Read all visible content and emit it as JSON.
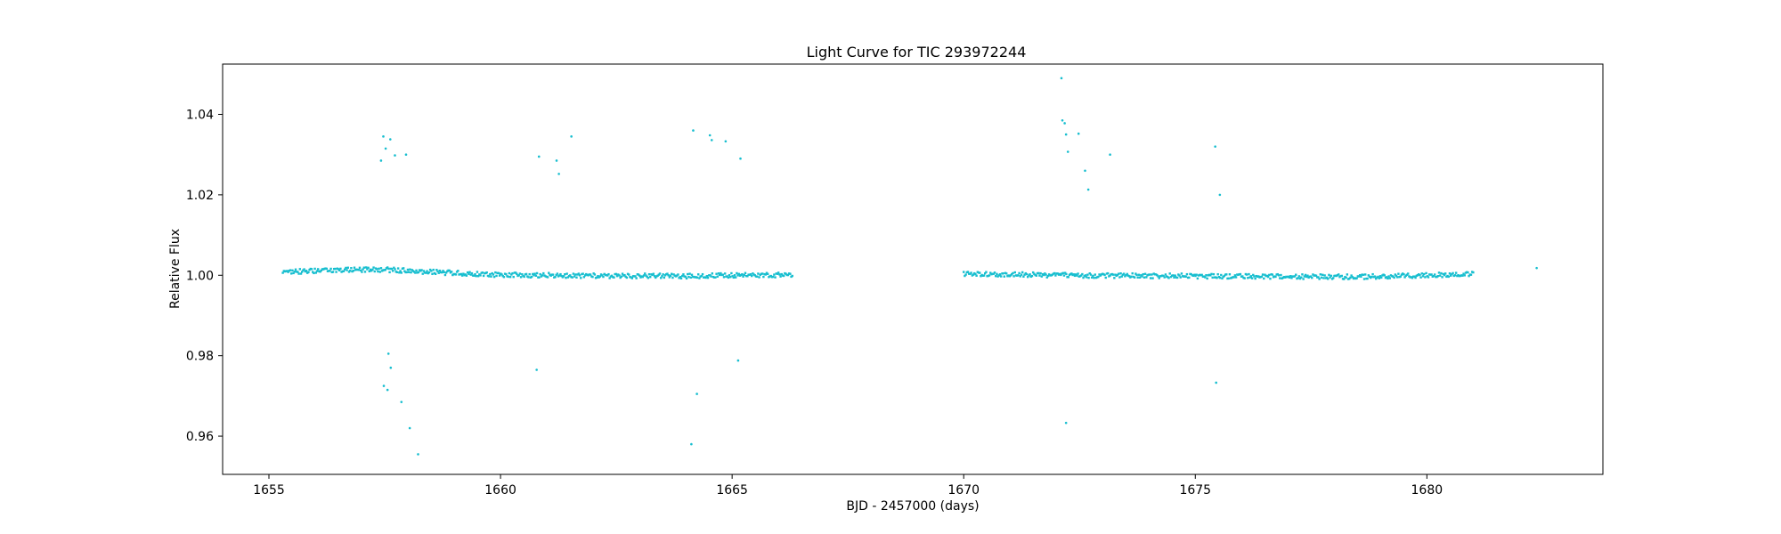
{
  "chart_data": {
    "type": "scatter",
    "title": "Light Curve for TIC 293972244",
    "xlabel": "BJD - 2457000 (days)",
    "ylabel": "Relative Flux",
    "xlim": [
      1654.0,
      1683.8
    ],
    "ylim": [
      0.9505,
      1.0525
    ],
    "xticks": [
      1655,
      1660,
      1665,
      1670,
      1675,
      1680
    ],
    "xtick_labels": [
      "1655",
      "1660",
      "1665",
      "1670",
      "1675",
      "1680"
    ],
    "yticks": [
      0.96,
      0.98,
      1.0,
      1.02,
      1.04
    ],
    "ytick_labels": [
      "0.96",
      "0.98",
      "1.00",
      "1.02",
      "1.04"
    ],
    "grid": false,
    "legend": "none",
    "colors": {
      "points": "#17becf"
    },
    "series": [
      {
        "segments": [
          {
            "x_start": 1655.3,
            "x_end": 1666.3,
            "trend": [
              [
                1655.3,
                1.0008
              ],
              [
                1656.5,
                1.0013
              ],
              [
                1657.5,
                1.0014
              ],
              [
                1658.5,
                1.0008
              ],
              [
                1660.0,
                1.0001
              ],
              [
                1662.0,
                0.9999
              ],
              [
                1664.0,
                0.9998
              ],
              [
                1666.3,
                1.0001
              ]
            ]
          },
          {
            "x_start": 1670.0,
            "x_end": 1681.0,
            "trend": [
              [
                1670.0,
                1.0004
              ],
              [
                1672.0,
                1.0
              ],
              [
                1675.0,
                0.9998
              ],
              [
                1678.5,
                0.9996
              ],
              [
                1681.0,
                1.0003
              ]
            ]
          }
        ],
        "outliers": [
          [
            1657.42,
            1.0285
          ],
          [
            1657.47,
            1.0345
          ],
          [
            1657.52,
            1.0315
          ],
          [
            1657.62,
            1.0338
          ],
          [
            1657.72,
            1.0298
          ],
          [
            1657.96,
            1.03
          ],
          [
            1657.48,
            0.9725
          ],
          [
            1657.56,
            0.9715
          ],
          [
            1657.58,
            0.9805
          ],
          [
            1657.63,
            0.977
          ],
          [
            1657.86,
            0.9685
          ],
          [
            1658.04,
            0.962
          ],
          [
            1658.22,
            0.9555
          ],
          [
            1660.83,
            1.0295
          ],
          [
            1661.21,
            1.0285
          ],
          [
            1661.26,
            1.0252
          ],
          [
            1661.53,
            1.0345
          ],
          [
            1660.78,
            0.9765
          ],
          [
            1664.16,
            1.036
          ],
          [
            1664.52,
            1.0348
          ],
          [
            1664.56,
            1.0336
          ],
          [
            1664.86,
            1.0333
          ],
          [
            1665.18,
            1.029
          ],
          [
            1664.24,
            0.9705
          ],
          [
            1664.12,
            0.958
          ],
          [
            1665.13,
            0.9788
          ],
          [
            1672.11,
            1.049
          ],
          [
            1672.13,
            1.0385
          ],
          [
            1672.18,
            1.0378
          ],
          [
            1672.21,
            1.035
          ],
          [
            1672.25,
            1.0307
          ],
          [
            1672.48,
            1.0352
          ],
          [
            1672.62,
            1.026
          ],
          [
            1672.69,
            1.0213
          ],
          [
            1673.16,
            1.03
          ],
          [
            1672.21,
            0.9633
          ],
          [
            1675.43,
            1.032
          ],
          [
            1675.53,
            1.02
          ],
          [
            1675.45,
            0.9733
          ],
          [
            1682.37,
            1.0018
          ]
        ]
      }
    ]
  }
}
